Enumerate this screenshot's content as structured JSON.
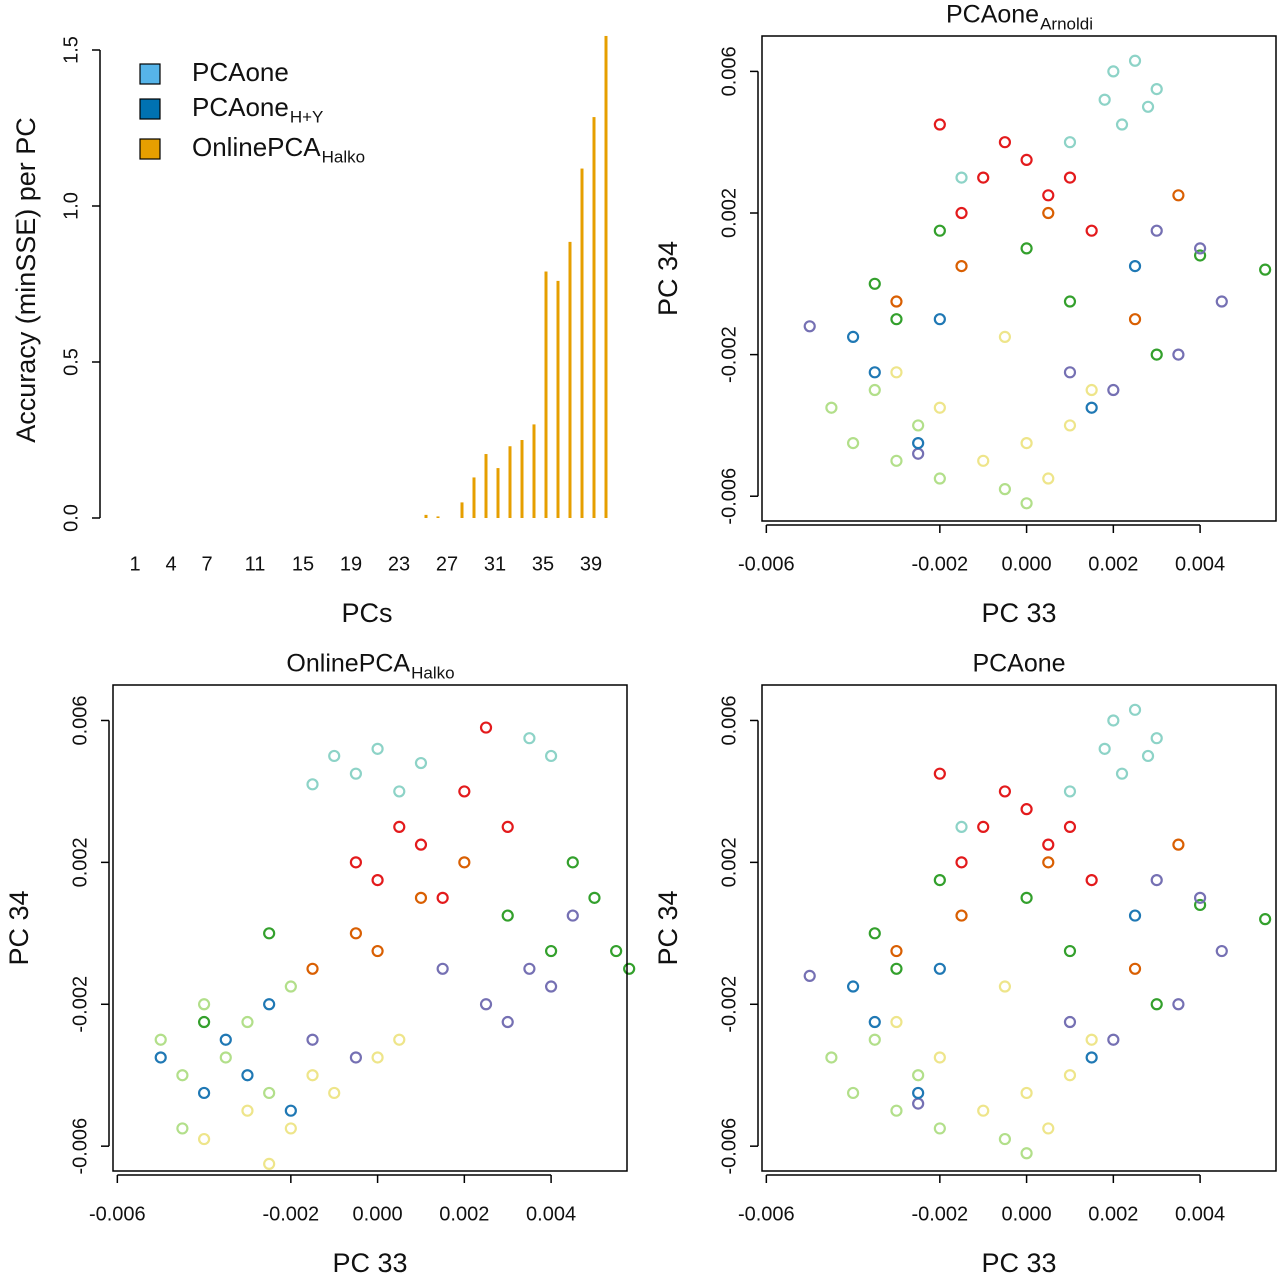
{
  "chart_data": [
    {
      "type": "bar",
      "ylabel": "Accuracy (minSSE) per PC",
      "xlabel": "PCs",
      "legend": "topleft",
      "categories": [
        "1",
        null,
        null,
        "4",
        null,
        null,
        "7",
        null,
        null,
        null,
        "11",
        null,
        null,
        null,
        "15",
        null,
        null,
        null,
        "19",
        null,
        null,
        null,
        "23",
        null,
        null,
        null,
        "27",
        null,
        null,
        null,
        "31",
        null,
        null,
        null,
        "35",
        null,
        null,
        null,
        "39",
        null
      ],
      "ylim": [
        0,
        1.5
      ],
      "yticks": [
        {
          "value": 0,
          "label": "0.0"
        },
        0.5,
        {
          "value": 1,
          "label": "1.0"
        },
        1.5
      ],
      "series": [
        {
          "name": "PCAone",
          "color": "#56b4e9",
          "values": [
            0,
            0,
            0,
            0,
            0,
            0,
            0,
            0,
            0,
            0,
            0,
            0,
            0,
            0,
            0,
            0,
            0,
            0,
            0,
            0,
            0,
            0,
            0,
            0,
            0,
            0,
            0,
            0,
            0,
            0,
            0,
            0,
            0,
            0,
            0,
            0,
            0,
            0,
            0,
            0
          ]
        },
        {
          "name": "PCAone",
          "name_sub": "H+Y",
          "color": "#0072b2",
          "values": [
            0,
            0,
            0,
            0,
            0,
            0,
            0,
            0,
            0,
            0,
            0,
            0,
            0,
            0,
            0,
            0,
            0,
            0,
            0,
            0,
            0,
            0,
            0,
            0,
            0,
            0,
            0,
            0,
            0,
            0,
            0,
            0,
            0,
            0,
            0,
            0,
            0,
            0,
            0,
            0
          ]
        },
        {
          "name": "OnlinePCA",
          "name_sub": "Halko",
          "color": "#e69f00",
          "values": [
            0,
            0,
            0,
            0,
            0,
            0,
            0,
            0,
            0,
            0,
            0,
            0,
            0,
            0,
            0,
            0,
            0,
            0,
            0,
            0,
            0,
            0,
            0,
            0,
            0.01,
            0.005,
            0,
            0.05,
            0.13,
            0.205,
            0.16,
            0.23,
            0.25,
            0.3,
            0.79,
            0.76,
            0.885,
            1.12,
            1.285,
            1.545
          ]
        }
      ]
    },
    {
      "type": "scatter",
      "title": "PCAone",
      "title_sub": "Arnoldi",
      "xlabel": "PC 33",
      "ylabel": "PC 34",
      "xlim": [
        -0.0061,
        0.00575
      ],
      "ylim": [
        -0.0067,
        0.007
      ],
      "xticks": [
        -0.006,
        -0.002,
        {
          "value": 0,
          "label": "0.000"
        },
        0.002,
        0.004
      ],
      "yticks": [
        -0.006,
        -0.002,
        0.002,
        0.006
      ],
      "series": [
        {
          "color": "#8dd3c7",
          "x": [
            0.002,
            0.0025,
            0.003,
            0.0018,
            0.0028,
            0.0022,
            0.001,
            -0.0015
          ],
          "values": [
            0.006,
            0.0063,
            0.0055,
            0.0052,
            0.005,
            0.0045,
            0.004,
            0.003
          ]
        },
        {
          "color": "#e31a1c",
          "x": [
            -0.001,
            0,
            0.0005,
            -0.0005,
            0.001,
            -0.002,
            0.0015,
            -0.0015
          ],
          "values": [
            0.003,
            0.0035,
            0.0025,
            0.004,
            0.003,
            0.0045,
            0.0015,
            0.002
          ]
        },
        {
          "color": "#33a02c",
          "x": [
            -0.0035,
            -0.003,
            0.004,
            0.0055,
            0.001,
            -0.002,
            0.003,
            0
          ],
          "values": [
            0,
            -0.001,
            0.0008,
            0.0004,
            -0.0005,
            0.0015,
            -0.002,
            0.001
          ]
        },
        {
          "color": "#7570b3",
          "x": [
            0.0045,
            0.0035,
            0.004,
            0.002,
            -0.005,
            0.003,
            -0.0025,
            0.001
          ],
          "values": [
            -0.0005,
            -0.002,
            0.001,
            -0.003,
            -0.0012,
            0.0015,
            -0.0048,
            -0.0025
          ]
        },
        {
          "color": "#b2df8a",
          "x": [
            -0.0045,
            -0.004,
            -0.0035,
            -0.003,
            -0.0025,
            -0.002,
            -0.0005,
            0
          ],
          "values": [
            -0.0035,
            -0.0045,
            -0.003,
            -0.005,
            -0.004,
            -0.0055,
            -0.0058,
            -0.0062
          ]
        },
        {
          "color": "#eee58a",
          "x": [
            -0.001,
            0,
            0.001,
            -0.002,
            0.0005,
            -0.003,
            0.0015,
            -0.0005
          ],
          "values": [
            -0.005,
            -0.0045,
            -0.004,
            -0.0035,
            -0.0055,
            -0.0025,
            -0.003,
            -0.0015
          ]
        },
        {
          "color": "#1f78b4",
          "x": [
            -0.0025,
            -0.0035,
            -0.002,
            0.0025,
            -0.004,
            0.0015
          ],
          "values": [
            -0.0045,
            -0.0025,
            -0.001,
            0.0005,
            -0.0015,
            -0.0035
          ]
        },
        {
          "color": "#d95f02",
          "x": [
            -0.0015,
            0.0005,
            0.0025,
            -0.003,
            0.0035
          ],
          "values": [
            0.0005,
            0.002,
            -0.001,
            -0.0005,
            0.0025
          ]
        }
      ]
    },
    {
      "type": "scatter",
      "title": "OnlinePCA",
      "title_sub": "Halko",
      "xlabel": "PC 33",
      "ylabel": "PC 34",
      "xlim": [
        -0.0061,
        0.00575
      ],
      "ylim": [
        -0.0067,
        0.007
      ],
      "xticks": [
        -0.006,
        -0.002,
        {
          "value": 0,
          "label": "0.000"
        },
        0.002,
        0.004
      ],
      "yticks": [
        -0.006,
        -0.002,
        0.002,
        0.006
      ],
      "series": [
        {
          "color": "#8dd3c7",
          "x": [
            -0.001,
            -0.0005,
            0,
            0.0005,
            0.001,
            -0.0015,
            0.0035,
            0.004
          ],
          "values": [
            0.005,
            0.0045,
            0.0052,
            0.004,
            0.0048,
            0.0042,
            0.0055,
            0.005
          ]
        },
        {
          "color": "#e31a1c",
          "x": [
            0.0005,
            0.001,
            0.002,
            0.0025,
            -0.0005,
            0.0015,
            0.003,
            0
          ],
          "values": [
            0.003,
            0.0025,
            0.004,
            0.0058,
            0.002,
            0.001,
            0.003,
            0.0015
          ]
        },
        {
          "color": "#33a02c",
          "x": [
            0.0045,
            0.005,
            0.0055,
            0.0058,
            0.004,
            0.003,
            -0.0025,
            -0.004
          ],
          "values": [
            0.002,
            0.001,
            -0.0005,
            -0.001,
            -0.0005,
            0.0005,
            0,
            -0.0025
          ]
        },
        {
          "color": "#7570b3",
          "x": [
            0.0025,
            0.0035,
            0.004,
            0.003,
            -0.0005,
            -0.0015,
            0.0015,
            0.0045
          ],
          "values": [
            -0.002,
            -0.001,
            -0.0015,
            -0.0025,
            -0.0035,
            -0.003,
            -0.001,
            0.0005
          ]
        },
        {
          "color": "#b2df8a",
          "x": [
            -0.005,
            -0.0045,
            -0.004,
            -0.0035,
            -0.003,
            -0.0025,
            -0.0045,
            -0.002
          ],
          "values": [
            -0.003,
            -0.004,
            -0.002,
            -0.0035,
            -0.0025,
            -0.0045,
            -0.0055,
            -0.0015
          ]
        },
        {
          "color": "#eee58a",
          "x": [
            -0.003,
            -0.002,
            -0.001,
            0,
            -0.0025,
            -0.0015,
            0.0005,
            -0.004
          ],
          "values": [
            -0.005,
            -0.0055,
            -0.0045,
            -0.0035,
            -0.0065,
            -0.004,
            -0.003,
            -0.0058
          ]
        },
        {
          "color": "#1f78b4",
          "x": [
            -0.005,
            -0.004,
            -0.0035,
            -0.003,
            -0.0025,
            -0.002
          ],
          "values": [
            -0.0035,
            -0.0045,
            -0.003,
            -0.004,
            -0.002,
            -0.005
          ]
        },
        {
          "color": "#d95f02",
          "x": [
            -0.0005,
            0,
            0.001,
            -0.0015,
            0.002
          ],
          "values": [
            0,
            -0.0005,
            0.001,
            -0.001,
            0.002
          ]
        }
      ]
    },
    {
      "type": "scatter",
      "title": "PCAone",
      "xlabel": "PC 33",
      "ylabel": "PC 34",
      "xlim": [
        -0.0061,
        0.00575
      ],
      "ylim": [
        -0.0067,
        0.007
      ],
      "xticks": [
        -0.006,
        -0.002,
        {
          "value": 0,
          "label": "0.000"
        },
        0.002,
        0.004
      ],
      "yticks": [
        -0.006,
        -0.002,
        0.002,
        0.006
      ],
      "series": [
        {
          "color": "#8dd3c7",
          "x": [
            0.002,
            0.0025,
            0.003,
            0.0018,
            0.0028,
            0.0022,
            0.001,
            -0.0015
          ],
          "values": [
            0.006,
            0.0063,
            0.0055,
            0.0052,
            0.005,
            0.0045,
            0.004,
            0.003
          ]
        },
        {
          "color": "#e31a1c",
          "x": [
            -0.001,
            0,
            0.0005,
            -0.0005,
            0.001,
            -0.002,
            0.0015,
            -0.0015
          ],
          "values": [
            0.003,
            0.0035,
            0.0025,
            0.004,
            0.003,
            0.0045,
            0.0015,
            0.002
          ]
        },
        {
          "color": "#33a02c",
          "x": [
            -0.0035,
            -0.003,
            0.004,
            0.0055,
            0.001,
            -0.002,
            0.003,
            0
          ],
          "values": [
            0,
            -0.001,
            0.0008,
            0.0004,
            -0.0005,
            0.0015,
            -0.002,
            0.001
          ]
        },
        {
          "color": "#7570b3",
          "x": [
            0.0045,
            0.0035,
            0.004,
            0.002,
            -0.005,
            0.003,
            -0.0025,
            0.001
          ],
          "values": [
            -0.0005,
            -0.002,
            0.001,
            -0.003,
            -0.0012,
            0.0015,
            -0.0048,
            -0.0025
          ]
        },
        {
          "color": "#b2df8a",
          "x": [
            -0.0045,
            -0.004,
            -0.0035,
            -0.003,
            -0.0025,
            -0.002,
            -0.0005,
            0
          ],
          "values": [
            -0.0035,
            -0.0045,
            -0.003,
            -0.005,
            -0.004,
            -0.0055,
            -0.0058,
            -0.0062
          ]
        },
        {
          "color": "#eee58a",
          "x": [
            -0.001,
            0,
            0.001,
            -0.002,
            0.0005,
            -0.003,
            0.0015,
            -0.0005
          ],
          "values": [
            -0.005,
            -0.0045,
            -0.004,
            -0.0035,
            -0.0055,
            -0.0025,
            -0.003,
            -0.0015
          ]
        },
        {
          "color": "#1f78b4",
          "x": [
            -0.0025,
            -0.0035,
            -0.002,
            0.0025,
            -0.004,
            0.0015
          ],
          "values": [
            -0.0045,
            -0.0025,
            -0.001,
            0.0005,
            -0.0015,
            -0.0035
          ]
        },
        {
          "color": "#d95f02",
          "x": [
            -0.0015,
            0.0005,
            0.0025,
            -0.003,
            0.0035
          ],
          "values": [
            0.0005,
            0.002,
            -0.001,
            -0.0005,
            0.0025
          ]
        }
      ]
    }
  ]
}
